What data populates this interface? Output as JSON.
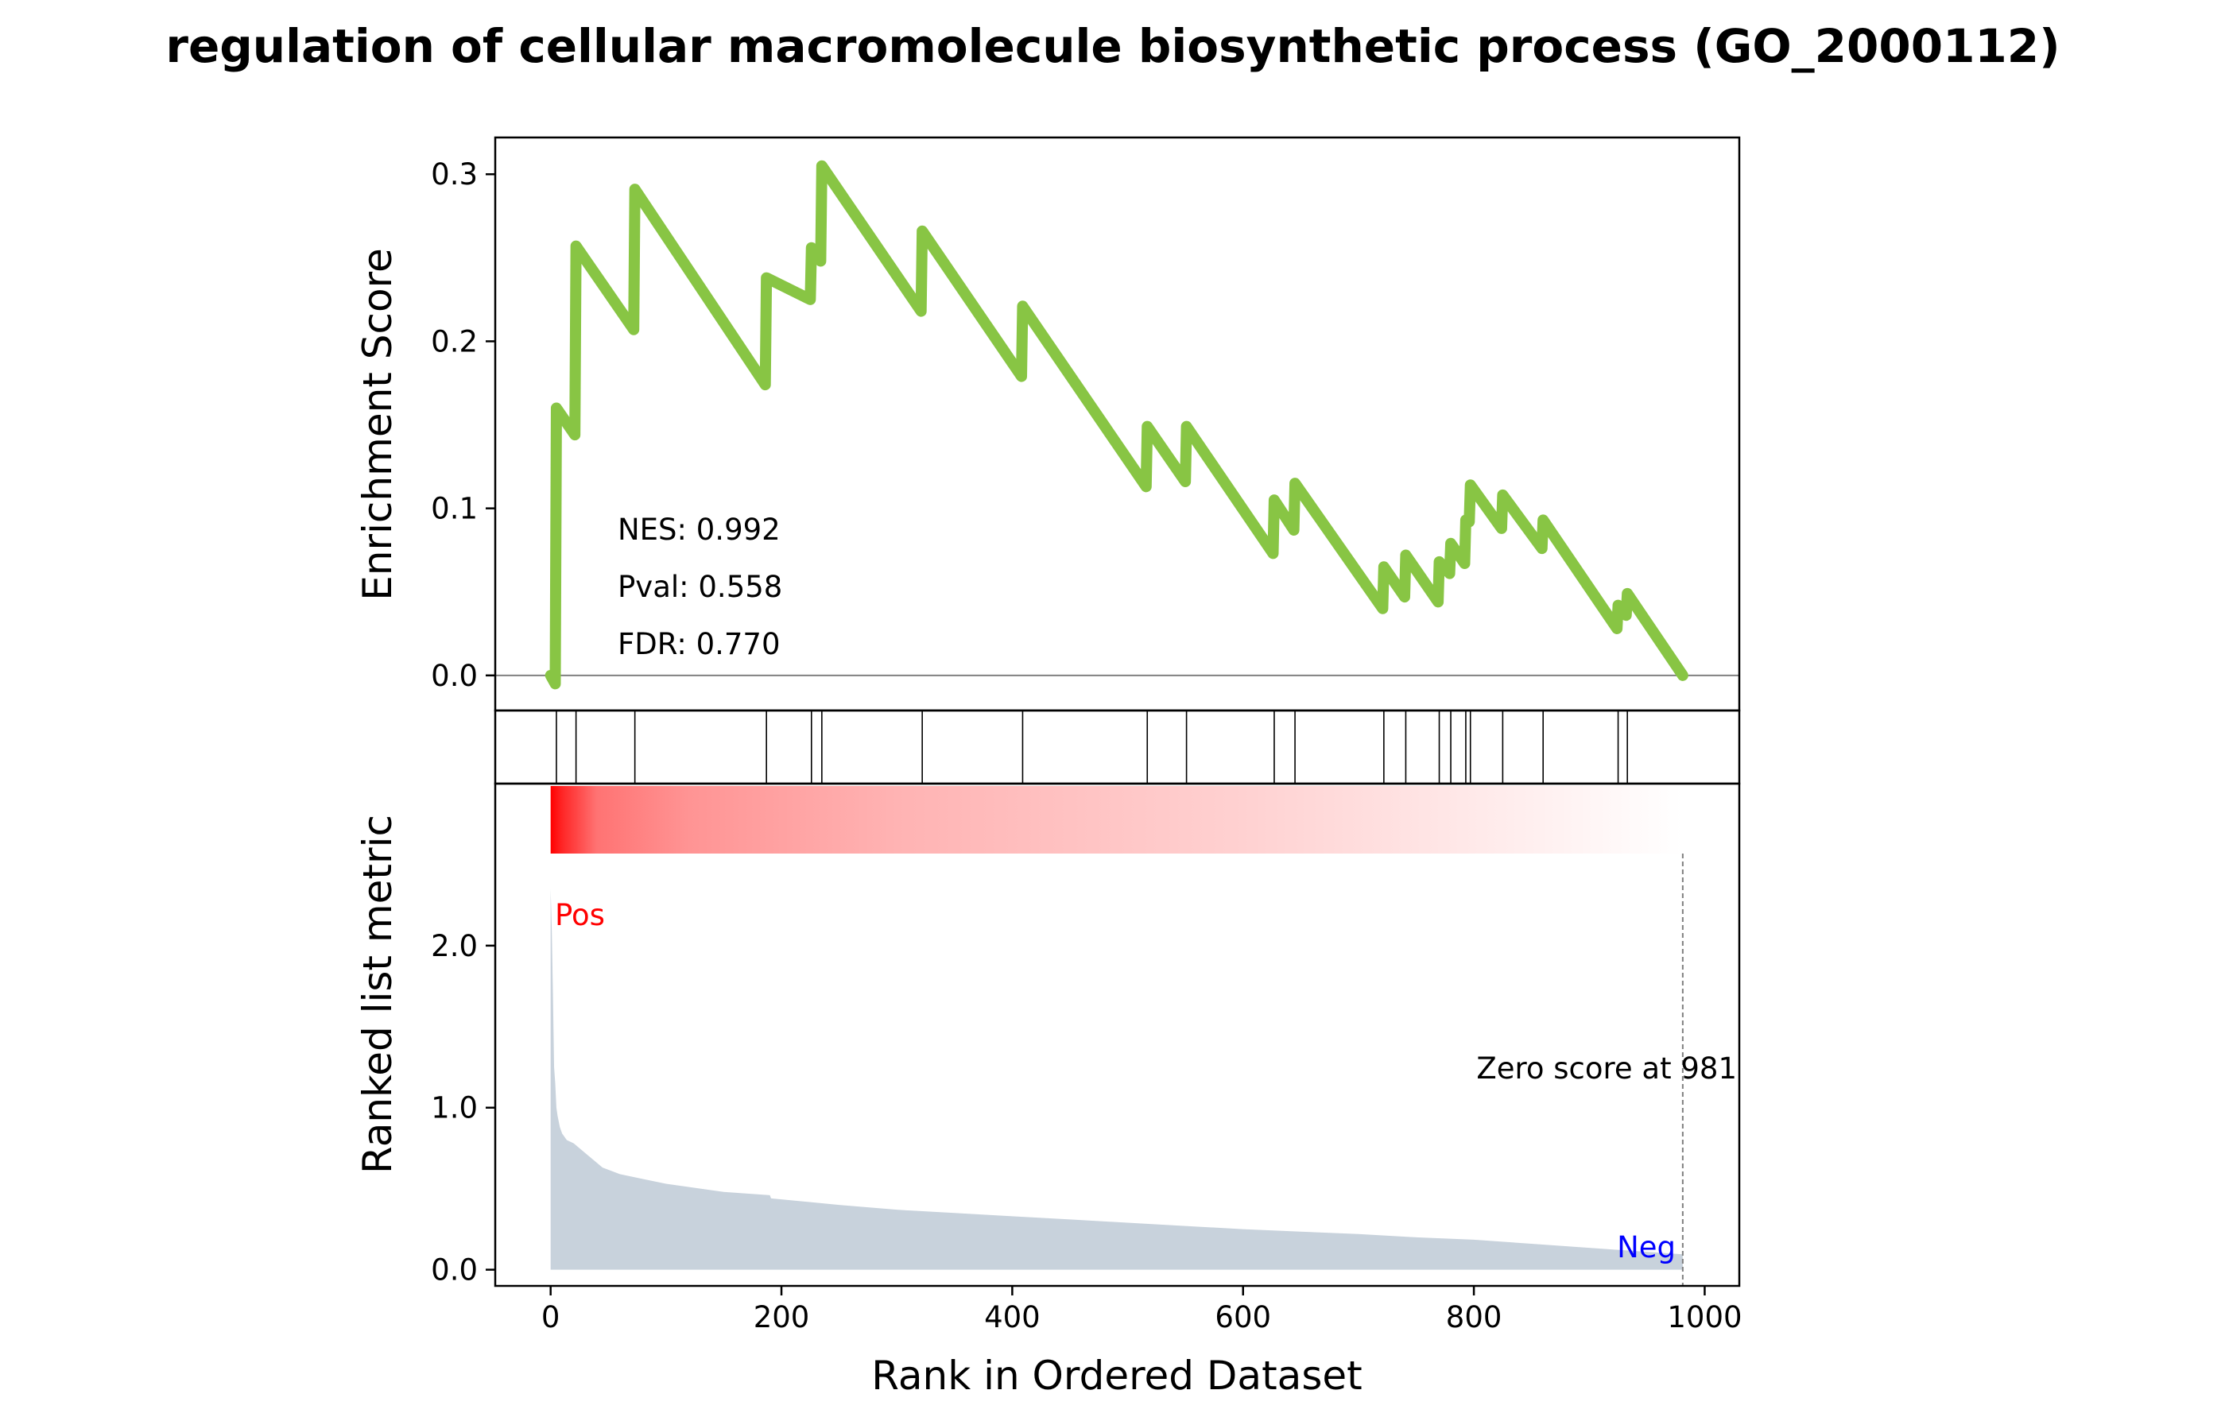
{
  "chart_data": {
    "type": "line",
    "title": "regulation of cellular macromolecule biosynthetic process (GO_2000112)",
    "xlabel": "Rank in Ordered Dataset",
    "xlim": [
      -48,
      1030
    ],
    "x_ticks": [
      0,
      200,
      400,
      600,
      800,
      1000
    ],
    "x_tick_labels": [
      "0",
      "200",
      "400",
      "600",
      "800",
      "1000"
    ],
    "enrichment": {
      "ylabel": "Enrichment Score",
      "ylim": [
        -0.021,
        0.322
      ],
      "y_ticks": [
        0.0,
        0.1,
        0.2,
        0.3
      ],
      "y_tick_labels": [
        "0.0",
        "0.1",
        "0.2",
        "0.3"
      ],
      "color": "#88c544",
      "hits": [
        5,
        22,
        73,
        187,
        226,
        235,
        322,
        409,
        517,
        551,
        627,
        645,
        722,
        741,
        770,
        780,
        793,
        797,
        825,
        860,
        925,
        933
      ],
      "x": [
        0,
        4,
        5,
        5,
        21,
        22,
        72,
        73,
        186,
        187,
        225,
        226,
        234,
        235,
        321,
        322,
        408,
        409,
        516,
        517,
        550,
        551,
        626,
        627,
        644,
        645,
        721,
        722,
        740,
        741,
        769,
        770,
        779,
        780,
        792,
        793,
        796,
        797,
        824,
        825,
        859,
        860,
        924,
        925,
        932,
        933,
        981
      ],
      "y": [
        0,
        -0.005,
        0.16,
        0.16,
        0.144,
        0.257,
        0.207,
        0.291,
        0.174,
        0.238,
        0.225,
        0.256,
        0.248,
        0.305,
        0.218,
        0.266,
        0.179,
        0.221,
        0.113,
        0.149,
        0.116,
        0.149,
        0.073,
        0.105,
        0.087,
        0.115,
        0.04,
        0.065,
        0.047,
        0.072,
        0.044,
        0.068,
        0.061,
        0.079,
        0.067,
        0.093,
        0.092,
        0.114,
        0.088,
        0.108,
        0.076,
        0.093,
        0.028,
        0.042,
        0.036,
        0.049,
        0
      ]
    },
    "annotations": {
      "nes": "NES: 0.992",
      "pval": "Pval: 0.558",
      "fdr": "FDR: 0.770",
      "pos": "Pos",
      "neg": "Neg",
      "zero_score": "Zero score at 981"
    },
    "ranked_metric": {
      "ylabel": "Ranked list metric",
      "ylim": [
        -0.1,
        3.0
      ],
      "y_ticks": [
        0.0,
        1.0,
        2.0
      ],
      "y_tick_labels": [
        "0.0",
        "1.0",
        "2.0"
      ],
      "fill_color": "#c8d2dc",
      "zero_score_rank": 981,
      "x": [
        0,
        1,
        2,
        3,
        4,
        5,
        6,
        8,
        10,
        14,
        20,
        30,
        45,
        60,
        80,
        100,
        150,
        190,
        191,
        250,
        300,
        350,
        400,
        450,
        500,
        550,
        600,
        650,
        700,
        750,
        800,
        850,
        900,
        950,
        981
      ],
      "values": [
        2.35,
        2.1,
        1.7,
        1.25,
        1.15,
        1.0,
        0.95,
        0.88,
        0.84,
        0.8,
        0.78,
        0.72,
        0.63,
        0.59,
        0.56,
        0.53,
        0.48,
        0.46,
        0.44,
        0.4,
        0.37,
        0.35,
        0.33,
        0.31,
        0.29,
        0.27,
        0.25,
        0.235,
        0.22,
        0.2,
        0.185,
        0.16,
        0.135,
        0.11,
        0.095
      ]
    },
    "heatmap": {
      "colormap": "white-to-red",
      "intensity_at_rank_x": [
        0,
        10,
        40,
        120,
        300,
        600,
        981
      ],
      "intensity": [
        1.0,
        0.85,
        0.55,
        0.42,
        0.3,
        0.18,
        0.0
      ]
    }
  }
}
